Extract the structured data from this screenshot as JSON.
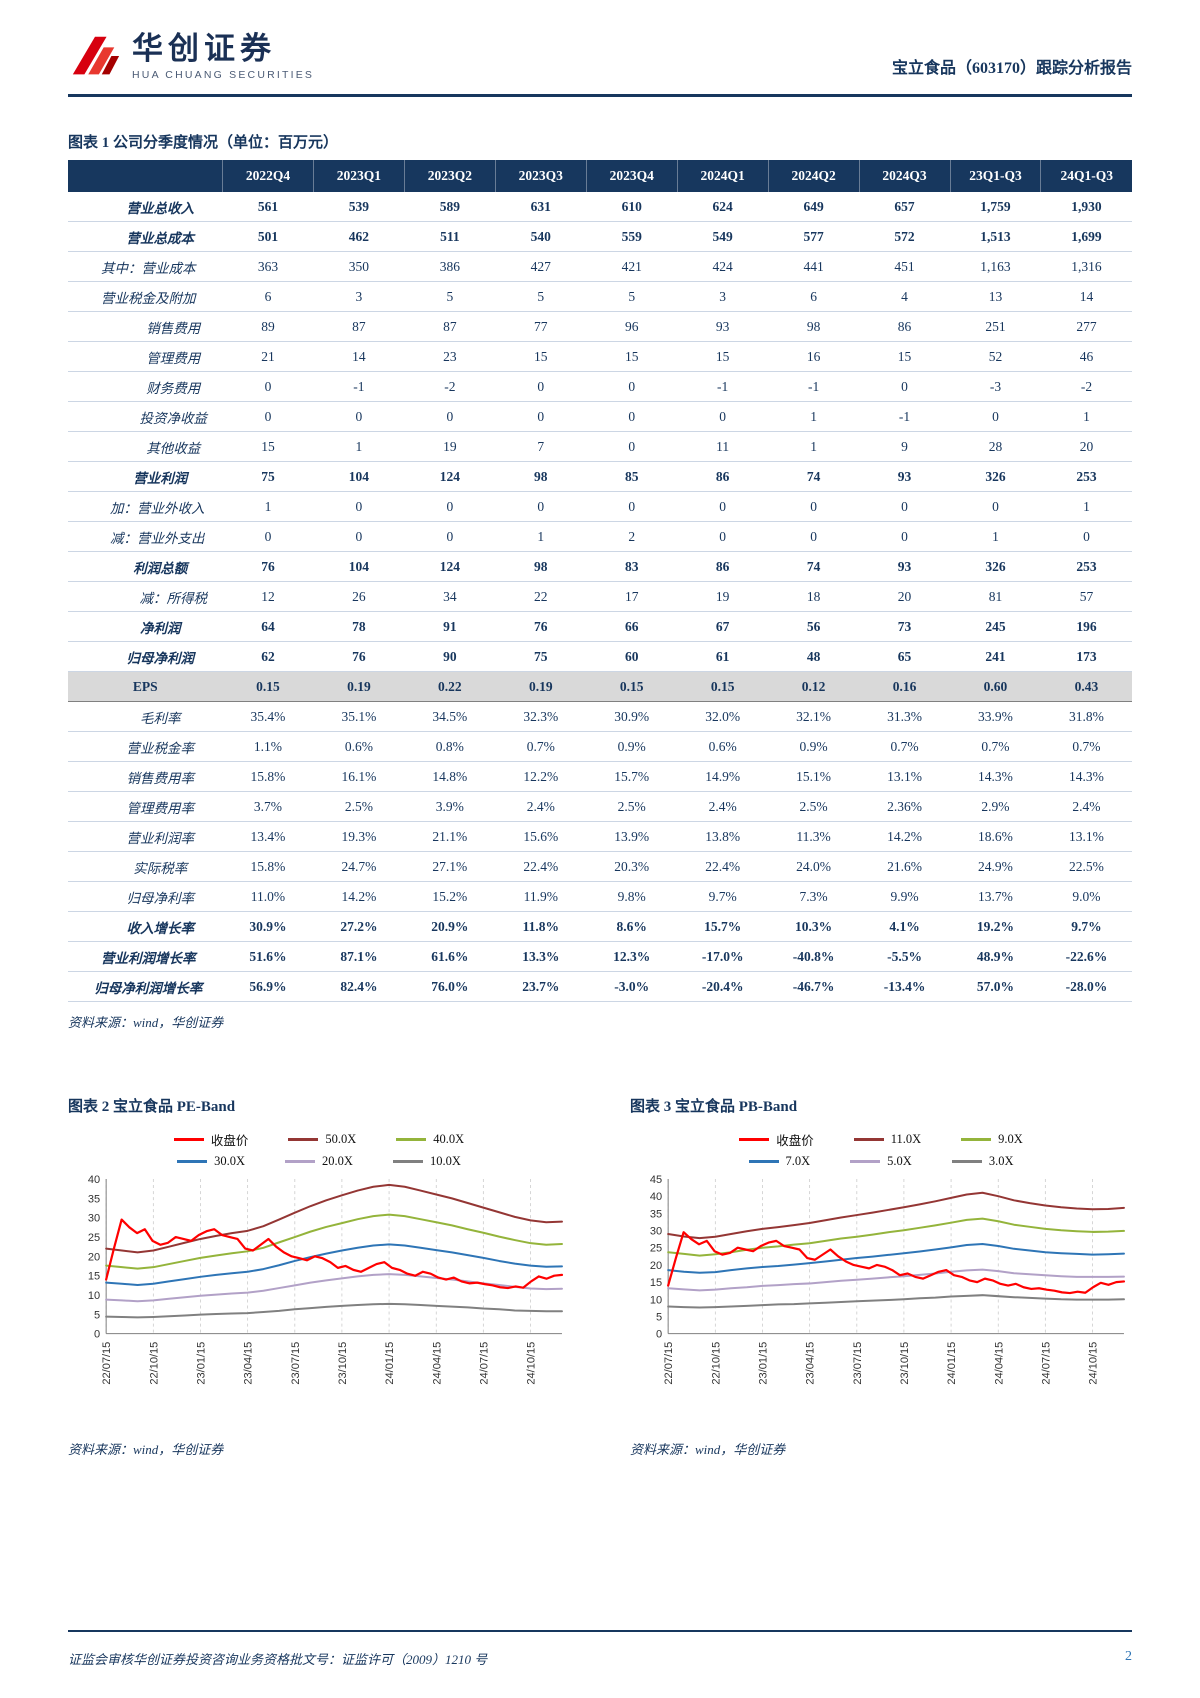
{
  "header": {
    "logo_title": "华创证券",
    "logo_subtitle": "HUA CHUANG SECURITIES",
    "report_title": "宝立食品（603170）跟踪分析报告"
  },
  "table": {
    "caption": "图表 1  公司分季度情况（单位：百万元）",
    "source": "资料来源：wind，华创证券",
    "columns": [
      "",
      "2022Q4",
      "2023Q1",
      "2023Q2",
      "2023Q3",
      "2023Q4",
      "2024Q1",
      "2024Q2",
      "2024Q3",
      "23Q1-Q3",
      "24Q1-Q3"
    ],
    "rows": [
      {
        "label": "营业总收入",
        "bold": true,
        "indent": 1,
        "values": [
          "561",
          "539",
          "589",
          "631",
          "610",
          "624",
          "649",
          "657",
          "1,759",
          "1,930"
        ]
      },
      {
        "label": "营业总成本",
        "bold": true,
        "indent": 1,
        "values": [
          "501",
          "462",
          "511",
          "540",
          "559",
          "549",
          "577",
          "572",
          "1,513",
          "1,699"
        ]
      },
      {
        "label": "其中：营业成本",
        "indent": 0,
        "values": [
          "363",
          "350",
          "386",
          "427",
          "421",
          "424",
          "441",
          "451",
          "1,163",
          "1,316"
        ]
      },
      {
        "label": "营业税金及附加",
        "indent": 0,
        "values": [
          "6",
          "3",
          "5",
          "5",
          "5",
          "3",
          "6",
          "4",
          "13",
          "14"
        ]
      },
      {
        "label": "销售费用",
        "indent": 2,
        "values": [
          "89",
          "87",
          "87",
          "77",
          "96",
          "93",
          "98",
          "86",
          "251",
          "277"
        ]
      },
      {
        "label": "管理费用",
        "indent": 2,
        "values": [
          "21",
          "14",
          "23",
          "15",
          "15",
          "15",
          "16",
          "15",
          "52",
          "46"
        ]
      },
      {
        "label": "财务费用",
        "indent": 2,
        "values": [
          "0",
          "-1",
          "-2",
          "0",
          "0",
          "-1",
          "-1",
          "0",
          "-3",
          "-2"
        ]
      },
      {
        "label": "投资净收益",
        "indent": 2,
        "values": [
          "0",
          "0",
          "0",
          "0",
          "0",
          "0",
          "1",
          "-1",
          "0",
          "1"
        ]
      },
      {
        "label": "其他收益",
        "indent": 2,
        "values": [
          "15",
          "1",
          "19",
          "7",
          "0",
          "11",
          "1",
          "9",
          "28",
          "20"
        ]
      },
      {
        "label": "营业利润",
        "bold": true,
        "indent": 1,
        "values": [
          "75",
          "104",
          "124",
          "98",
          "85",
          "86",
          "74",
          "93",
          "326",
          "253"
        ]
      },
      {
        "label": "加：营业外收入",
        "indent": 3,
        "values": [
          "1",
          "0",
          "0",
          "0",
          "0",
          "0",
          "0",
          "0",
          "0",
          "1"
        ]
      },
      {
        "label": "减：营业外支出",
        "indent": 3,
        "values": [
          "0",
          "0",
          "0",
          "1",
          "2",
          "0",
          "0",
          "0",
          "1",
          "0"
        ]
      },
      {
        "label": "利润总额",
        "bold": true,
        "indent": 1,
        "values": [
          "76",
          "104",
          "124",
          "98",
          "83",
          "86",
          "74",
          "93",
          "326",
          "253"
        ]
      },
      {
        "label": "减：所得税",
        "indent": 2,
        "values": [
          "12",
          "26",
          "34",
          "22",
          "17",
          "19",
          "18",
          "20",
          "81",
          "57"
        ]
      },
      {
        "label": "净利润",
        "bold": true,
        "indent": 1,
        "values": [
          "64",
          "78",
          "91",
          "76",
          "66",
          "67",
          "56",
          "73",
          "245",
          "196"
        ]
      },
      {
        "label": "归母净利润",
        "bold": true,
        "indent": 1,
        "values": [
          "62",
          "76",
          "90",
          "75",
          "60",
          "61",
          "48",
          "65",
          "241",
          "173"
        ]
      },
      {
        "label": "EPS",
        "bold": true,
        "center": true,
        "shaded": true,
        "values": [
          "0.15",
          "0.19",
          "0.22",
          "0.19",
          "0.15",
          "0.15",
          "0.12",
          "0.16",
          "0.60",
          "0.43"
        ]
      },
      {
        "label": "毛利率",
        "indent": 1,
        "values": [
          "35.4%",
          "35.1%",
          "34.5%",
          "32.3%",
          "30.9%",
          "32.0%",
          "32.1%",
          "31.3%",
          "33.9%",
          "31.8%"
        ]
      },
      {
        "label": "营业税金率",
        "indent": 1,
        "values": [
          "1.1%",
          "0.6%",
          "0.8%",
          "0.7%",
          "0.9%",
          "0.6%",
          "0.9%",
          "0.7%",
          "0.7%",
          "0.7%"
        ]
      },
      {
        "label": "销售费用率",
        "indent": 1,
        "values": [
          "15.8%",
          "16.1%",
          "14.8%",
          "12.2%",
          "15.7%",
          "14.9%",
          "15.1%",
          "13.1%",
          "14.3%",
          "14.3%"
        ]
      },
      {
        "label": "管理费用率",
        "indent": 1,
        "values": [
          "3.7%",
          "2.5%",
          "3.9%",
          "2.4%",
          "2.5%",
          "2.4%",
          "2.5%",
          "2.36%",
          "2.9%",
          "2.4%"
        ]
      },
      {
        "label": "营业利润率",
        "indent": 1,
        "values": [
          "13.4%",
          "19.3%",
          "21.1%",
          "15.6%",
          "13.9%",
          "13.8%",
          "11.3%",
          "14.2%",
          "18.6%",
          "13.1%"
        ]
      },
      {
        "label": "实际税率",
        "indent": 1,
        "values": [
          "15.8%",
          "24.7%",
          "27.1%",
          "22.4%",
          "20.3%",
          "22.4%",
          "24.0%",
          "21.6%",
          "24.9%",
          "22.5%"
        ]
      },
      {
        "label": "归母净利率",
        "indent": 1,
        "values": [
          "11.0%",
          "14.2%",
          "15.2%",
          "11.9%",
          "9.8%",
          "9.7%",
          "7.3%",
          "9.9%",
          "13.7%",
          "9.0%"
        ]
      },
      {
        "label": "收入增长率",
        "bold": true,
        "indent": 1,
        "values": [
          "30.9%",
          "27.2%",
          "20.9%",
          "11.8%",
          "8.6%",
          "15.7%",
          "10.3%",
          "4.1%",
          "19.2%",
          "9.7%"
        ]
      },
      {
        "label": "营业利润增长率",
        "bold": true,
        "indent": 0,
        "values": [
          "51.6%",
          "87.1%",
          "61.6%",
          "13.3%",
          "12.3%",
          "-17.0%",
          "-40.8%",
          "-5.5%",
          "48.9%",
          "-22.6%"
        ]
      },
      {
        "label": "归母净利润增长率",
        "bold": true,
        "indent": 0,
        "values": [
          "56.9%",
          "82.4%",
          "76.0%",
          "23.7%",
          "-3.0%",
          "-20.4%",
          "-46.7%",
          "-13.4%",
          "57.0%",
          "-28.0%"
        ]
      }
    ]
  },
  "charts": [
    {
      "caption": "图表 2  宝立食品 PE-Band",
      "source": "资料来源：wind，华创证券"
    },
    {
      "caption": "图表 3  宝立食品 PB-Band",
      "source": "资料来源：wind，华创证券"
    }
  ],
  "chart_data": [
    {
      "id": "pe-band",
      "type": "line",
      "title": "宝立食品 PE-Band",
      "ylim": [
        0,
        40
      ],
      "y_step": 5,
      "x_ticks": [
        "22/07/15",
        "22/10/15",
        "23/01/15",
        "23/04/15",
        "23/07/15",
        "23/10/15",
        "24/01/15",
        "24/04/15",
        "24/07/15",
        "24/10/15"
      ],
      "legend_position": "top",
      "grid": "vertical-dashed",
      "series": [
        {
          "name": "收盘价",
          "color": "#FF0000",
          "width": 2.2,
          "values": [
            14,
            22,
            29.5,
            27.5,
            26,
            27,
            24,
            23,
            23.5,
            25,
            24.5,
            24,
            25.5,
            26.5,
            27,
            25.5,
            25,
            24.5,
            22,
            21.5,
            23,
            24.5,
            22.5,
            21,
            20,
            19.5,
            19,
            20,
            19.5,
            18.5,
            17,
            17.5,
            16.5,
            16,
            17,
            18,
            18.5,
            17,
            16.5,
            15.5,
            15,
            16,
            15.5,
            14.5,
            14,
            14.5,
            13.5,
            13,
            13.2,
            12.8,
            12.5,
            12,
            11.8,
            12.2,
            11.9,
            13.5,
            14.8,
            14.2,
            15,
            15.2
          ]
        },
        {
          "name": "50.0X",
          "color": "#943634",
          "width": 2,
          "values": [
            22,
            21.5,
            21,
            21.5,
            22.5,
            23.5,
            24.5,
            25.3,
            26,
            26.6,
            27.8,
            29.5,
            31.3,
            33,
            34.5,
            35.8,
            37,
            38,
            38.5,
            38,
            37,
            36,
            35,
            33.8,
            32.6,
            31.4,
            30.2,
            29.3,
            28.8,
            29
          ]
        },
        {
          "name": "40.0X",
          "color": "#94B43B",
          "width": 2,
          "values": [
            17.6,
            17.2,
            16.8,
            17.2,
            18,
            18.8,
            19.6,
            20.2,
            20.8,
            21.3,
            22.2,
            23.6,
            25,
            26.4,
            27.6,
            28.6,
            29.6,
            30.4,
            30.8,
            30.4,
            29.6,
            28.8,
            28,
            27,
            26.1,
            25.1,
            24.2,
            23.4,
            23,
            23.2
          ]
        },
        {
          "name": "30.0X",
          "color": "#2E75B6",
          "width": 2,
          "values": [
            13.2,
            12.9,
            12.6,
            12.9,
            13.5,
            14.1,
            14.7,
            15.2,
            15.6,
            16,
            16.7,
            17.7,
            18.8,
            19.8,
            20.7,
            21.5,
            22.2,
            22.8,
            23.1,
            22.8,
            22.2,
            21.6,
            21,
            20.3,
            19.6,
            18.8,
            18.1,
            17.6,
            17.3,
            17.4
          ]
        },
        {
          "name": "20.0X",
          "color": "#B2A1C7",
          "width": 2,
          "values": [
            8.8,
            8.6,
            8.4,
            8.6,
            9,
            9.4,
            9.8,
            10.1,
            10.4,
            10.6,
            11.1,
            11.8,
            12.5,
            13.2,
            13.8,
            14.3,
            14.8,
            15.2,
            15.4,
            15.2,
            14.8,
            14.4,
            14,
            13.5,
            13,
            12.6,
            12.1,
            11.7,
            11.5,
            11.6
          ]
        },
        {
          "name": "10.0X",
          "color": "#808080",
          "width": 2,
          "values": [
            4.4,
            4.3,
            4.2,
            4.3,
            4.5,
            4.7,
            4.9,
            5.1,
            5.2,
            5.3,
            5.6,
            5.9,
            6.3,
            6.6,
            6.9,
            7.2,
            7.4,
            7.6,
            7.7,
            7.6,
            7.4,
            7.2,
            7,
            6.8,
            6.5,
            6.3,
            6,
            5.9,
            5.8,
            5.8
          ]
        }
      ]
    },
    {
      "id": "pb-band",
      "type": "line",
      "title": "宝立食品 PB-Band",
      "ylim": [
        0,
        45
      ],
      "y_step": 5,
      "x_ticks": [
        "22/07/15",
        "22/10/15",
        "23/01/15",
        "23/04/15",
        "23/07/15",
        "23/10/15",
        "24/01/15",
        "24/04/15",
        "24/07/15",
        "24/10/15"
      ],
      "legend_position": "top",
      "grid": "vertical-dashed",
      "series": [
        {
          "name": "收盘价",
          "color": "#FF0000",
          "width": 2.2,
          "values": [
            14,
            22,
            29.5,
            27.5,
            26,
            27,
            24,
            23,
            23.5,
            25,
            24.5,
            24,
            25.5,
            26.5,
            27,
            25.5,
            25,
            24.5,
            22,
            21.5,
            23,
            24.5,
            22.5,
            21,
            20,
            19.5,
            19,
            20,
            19.5,
            18.5,
            17,
            17.5,
            16.5,
            16,
            17,
            18,
            18.5,
            17,
            16.5,
            15.5,
            15,
            16,
            15.5,
            14.5,
            14,
            14.5,
            13.5,
            13,
            13.2,
            12.8,
            12.5,
            12,
            11.8,
            12.2,
            11.9,
            13.5,
            14.8,
            14.2,
            15,
            15.2
          ]
        },
        {
          "name": "11.0X",
          "color": "#943634",
          "width": 2,
          "values": [
            29,
            28.3,
            27.8,
            28.2,
            29,
            29.8,
            30.5,
            31,
            31.6,
            32.2,
            33,
            33.8,
            34.5,
            35.2,
            36,
            36.8,
            37.6,
            38.5,
            39.5,
            40.5,
            41,
            40,
            38.8,
            38,
            37.3,
            36.8,
            36.4,
            36.2,
            36.3,
            36.6
          ]
        },
        {
          "name": "9.0X",
          "color": "#94B43B",
          "width": 2,
          "values": [
            23.7,
            23.2,
            22.7,
            23.1,
            23.7,
            24.4,
            25,
            25.4,
            25.9,
            26.3,
            27,
            27.7,
            28.2,
            28.8,
            29.5,
            30.1,
            30.8,
            31.5,
            32.3,
            33.1,
            33.5,
            32.7,
            31.7,
            31.1,
            30.5,
            30.1,
            29.8,
            29.6,
            29.7,
            29.9
          ]
        },
        {
          "name": "7.0X",
          "color": "#2E75B6",
          "width": 2,
          "values": [
            18.5,
            18,
            17.7,
            17.9,
            18.5,
            19,
            19.4,
            19.7,
            20.1,
            20.5,
            21,
            21.5,
            22,
            22.4,
            22.9,
            23.4,
            23.9,
            24.5,
            25.1,
            25.8,
            26.1,
            25.5,
            24.7,
            24.2,
            23.7,
            23.4,
            23.2,
            23,
            23.1,
            23.3
          ]
        },
        {
          "name": "5.0X",
          "color": "#B2A1C7",
          "width": 2,
          "values": [
            13.2,
            12.9,
            12.6,
            12.8,
            13.2,
            13.5,
            13.9,
            14.1,
            14.4,
            14.6,
            15,
            15.4,
            15.7,
            16,
            16.4,
            16.7,
            17.1,
            17.5,
            18,
            18.4,
            18.6,
            18.2,
            17.6,
            17.3,
            17,
            16.7,
            16.5,
            16.5,
            16.5,
            16.6
          ]
        },
        {
          "name": "3.0X",
          "color": "#808080",
          "width": 2,
          "values": [
            7.9,
            7.7,
            7.6,
            7.7,
            7.9,
            8.1,
            8.3,
            8.5,
            8.6,
            8.8,
            9,
            9.2,
            9.4,
            9.6,
            9.8,
            10,
            10.3,
            10.5,
            10.8,
            11,
            11.2,
            10.9,
            10.6,
            10.4,
            10.2,
            10,
            9.9,
            9.9,
            9.9,
            10
          ]
        }
      ]
    }
  ],
  "footer": {
    "left": "证监会审核华创证券投资咨询业务资格批文号：证监许可（2009）1210 号",
    "page": "2"
  }
}
